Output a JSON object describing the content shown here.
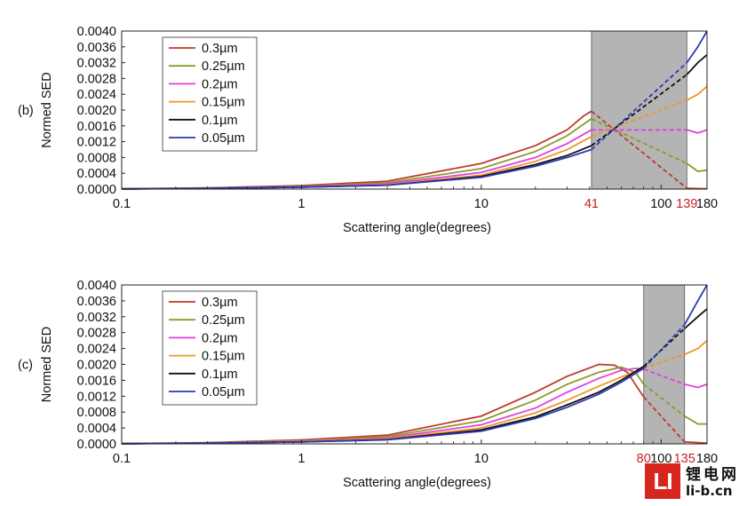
{
  "watermark": {
    "logo": "LI",
    "chinese": "锂电网",
    "url": "li-b.cn"
  },
  "chart_data": [
    {
      "type": "line",
      "panel_label": "(b)",
      "xlabel": "Scattering angle(degrees)",
      "ylabel": "Normed SED",
      "x_scale": "log",
      "xlim": [
        0.1,
        180
      ],
      "ylim": [
        0,
        0.004
      ],
      "x_ticks": [
        "0.1",
        "1",
        "10",
        "100",
        "180"
      ],
      "y_ticks": [
        "0.0000",
        "0.0004",
        "0.0008",
        "0.0012",
        "0.0016",
        "0.0020",
        "0.0024",
        "0.0028",
        "0.0032",
        "0.0036",
        "0.0040"
      ],
      "grid": false,
      "legend": "top-left",
      "shaded_region": [
        41,
        139
      ],
      "highlight_labels": [
        "41",
        "139"
      ],
      "highlight_color": "#c8202a",
      "series": [
        {
          "name": "0.3µm",
          "color": "#c0392b",
          "solid": [
            [
              0.1,
              5e-06
            ],
            [
              0.3,
              3e-05
            ],
            [
              1,
              9e-05
            ],
            [
              3,
              0.0002
            ],
            [
              10,
              0.00065
            ],
            [
              20,
              0.0011
            ],
            [
              30,
              0.0015
            ],
            [
              37,
              0.00185
            ],
            [
              41,
              0.00197
            ]
          ],
          "dashed": [
            [
              41,
              0.00197
            ],
            [
              139,
              2e-05
            ]
          ],
          "tail": [
            [
              139,
              2e-05
            ],
            [
              180,
              1e-05
            ]
          ]
        },
        {
          "name": "0.25µm",
          "color": "#8c9a2a",
          "solid": [
            [
              0.1,
              5e-06
            ],
            [
              0.3,
              2.5e-05
            ],
            [
              1,
              7e-05
            ],
            [
              3,
              0.00016
            ],
            [
              10,
              0.00052
            ],
            [
              20,
              0.00095
            ],
            [
              30,
              0.00135
            ],
            [
              41,
              0.00178
            ]
          ],
          "dashed": [
            [
              41,
              0.00178
            ],
            [
              139,
              0.00065
            ]
          ],
          "tail": [
            [
              139,
              0.00065
            ],
            [
              160,
              0.00045
            ],
            [
              180,
              0.00048
            ]
          ]
        },
        {
          "name": "0.2µm",
          "color": "#e040e0",
          "solid": [
            [
              0.1,
              5e-06
            ],
            [
              0.3,
              2e-05
            ],
            [
              1,
              6e-05
            ],
            [
              3,
              0.00013
            ],
            [
              10,
              0.00042
            ],
            [
              20,
              0.0008
            ],
            [
              30,
              0.00115
            ],
            [
              41,
              0.0015
            ]
          ],
          "dashed": [
            [
              41,
              0.0015
            ],
            [
              139,
              0.0015
            ]
          ],
          "tail": [
            [
              139,
              0.0015
            ],
            [
              160,
              0.00142
            ],
            [
              180,
              0.0015
            ]
          ]
        },
        {
          "name": "0.15µm",
          "color": "#f0962a",
          "solid": [
            [
              0.1,
              5e-06
            ],
            [
              0.3,
              2e-05
            ],
            [
              1,
              5e-05
            ],
            [
              3,
              0.00011
            ],
            [
              10,
              0.00035
            ],
            [
              20,
              0.0007
            ],
            [
              30,
              0.001
            ],
            [
              41,
              0.00133
            ]
          ],
          "dashed": [
            [
              41,
              0.00133
            ],
            [
              139,
              0.00225
            ]
          ],
          "tail": [
            [
              139,
              0.00225
            ],
            [
              160,
              0.0024
            ],
            [
              180,
              0.0026
            ]
          ]
        },
        {
          "name": "0.1µm",
          "color": "#111111",
          "solid": [
            [
              0.1,
              5e-06
            ],
            [
              0.3,
              2e-05
            ],
            [
              1,
              5e-05
            ],
            [
              3,
              0.0001
            ],
            [
              10,
              0.00032
            ],
            [
              20,
              0.00062
            ],
            [
              30,
              0.00085
            ],
            [
              41,
              0.0011
            ]
          ],
          "dashed": [
            [
              41,
              0.0011
            ],
            [
              139,
              0.0029
            ]
          ],
          "tail": [
            [
              139,
              0.0029
            ],
            [
              160,
              0.0032
            ],
            [
              180,
              0.0034
            ]
          ]
        },
        {
          "name": "0.05µm",
          "color": "#2f3ab0",
          "solid": [
            [
              0.1,
              5e-06
            ],
            [
              0.3,
              2e-05
            ],
            [
              1,
              5e-05
            ],
            [
              3,
              0.0001
            ],
            [
              10,
              0.0003
            ],
            [
              20,
              0.00058
            ],
            [
              30,
              0.0008
            ],
            [
              41,
              0.001
            ]
          ],
          "dashed": [
            [
              41,
              0.001
            ],
            [
              139,
              0.0032
            ]
          ],
          "tail": [
            [
              139,
              0.0032
            ],
            [
              160,
              0.0036
            ],
            [
              180,
              0.004
            ]
          ]
        }
      ]
    },
    {
      "type": "line",
      "panel_label": "(c)",
      "xlabel": "Scattering angle(degrees)",
      "ylabel": "Normed SED",
      "x_scale": "log",
      "xlim": [
        0.1,
        180
      ],
      "ylim": [
        0,
        0.004
      ],
      "x_ticks": [
        "0.1",
        "1",
        "10",
        "100",
        "180"
      ],
      "y_ticks": [
        "0.0000",
        "0.0004",
        "0.0008",
        "0.0012",
        "0.0016",
        "0.0020",
        "0.0024",
        "0.0028",
        "0.0032",
        "0.0036",
        "0.0040"
      ],
      "grid": false,
      "legend": "top-left",
      "shaded_region": [
        80,
        135
      ],
      "highlight_labels": [
        "80",
        "135"
      ],
      "highlight_color": "#c8202a",
      "series": [
        {
          "name": "0.3µm",
          "color": "#c0392b",
          "solid": [
            [
              0.1,
              5e-06
            ],
            [
              0.3,
              3e-05
            ],
            [
              1,
              0.0001
            ],
            [
              3,
              0.00022
            ],
            [
              10,
              0.0007
            ],
            [
              20,
              0.0013
            ],
            [
              30,
              0.0017
            ],
            [
              45,
              0.002
            ],
            [
              55,
              0.00198
            ],
            [
              65,
              0.0018
            ],
            [
              80,
              0.00118
            ]
          ],
          "dashed": [
            [
              80,
              0.00118
            ],
            [
              135,
              5e-05
            ]
          ],
          "tail": [
            [
              135,
              5e-05
            ],
            [
              180,
              2e-05
            ]
          ]
        },
        {
          "name": "0.25µm",
          "color": "#8c9a2a",
          "solid": [
            [
              0.1,
              5e-06
            ],
            [
              0.3,
              2.5e-05
            ],
            [
              1,
              8e-05
            ],
            [
              3,
              0.00018
            ],
            [
              10,
              0.00058
            ],
            [
              20,
              0.0011
            ],
            [
              30,
              0.0015
            ],
            [
              45,
              0.0018
            ],
            [
              60,
              0.00193
            ],
            [
              72,
              0.0018
            ],
            [
              80,
              0.0015
            ]
          ],
          "dashed": [
            [
              80,
              0.0015
            ],
            [
              135,
              0.0007
            ]
          ],
          "tail": [
            [
              135,
              0.0007
            ],
            [
              160,
              0.0005
            ],
            [
              180,
              0.0005
            ]
          ]
        },
        {
          "name": "0.2µm",
          "color": "#e040e0",
          "solid": [
            [
              0.1,
              5e-06
            ],
            [
              0.3,
              2e-05
            ],
            [
              1,
              7e-05
            ],
            [
              3,
              0.00015
            ],
            [
              10,
              0.00048
            ],
            [
              20,
              0.0009
            ],
            [
              30,
              0.0013
            ],
            [
              45,
              0.00165
            ],
            [
              60,
              0.00185
            ],
            [
              72,
              0.0019
            ],
            [
              80,
              0.00188
            ]
          ],
          "dashed": [
            [
              80,
              0.00188
            ],
            [
              135,
              0.0015
            ]
          ],
          "tail": [
            [
              135,
              0.0015
            ],
            [
              160,
              0.00142
            ],
            [
              180,
              0.0015
            ]
          ]
        },
        {
          "name": "0.15µm",
          "color": "#f0962a",
          "solid": [
            [
              0.1,
              5e-06
            ],
            [
              0.3,
              2e-05
            ],
            [
              1,
              6e-05
            ],
            [
              3,
              0.00013
            ],
            [
              10,
              0.0004
            ],
            [
              20,
              0.00078
            ],
            [
              30,
              0.0011
            ],
            [
              45,
              0.00145
            ],
            [
              60,
              0.00168
            ],
            [
              80,
              0.0019
            ]
          ],
          "dashed": [
            [
              80,
              0.0019
            ],
            [
              135,
              0.00225
            ]
          ],
          "tail": [
            [
              135,
              0.00225
            ],
            [
              160,
              0.0024
            ],
            [
              180,
              0.0026
            ]
          ]
        },
        {
          "name": "0.1µm",
          "color": "#111111",
          "solid": [
            [
              0.1,
              5e-06
            ],
            [
              0.3,
              2e-05
            ],
            [
              1,
              5e-05
            ],
            [
              3,
              0.00011
            ],
            [
              10,
              0.00035
            ],
            [
              20,
              0.00068
            ],
            [
              30,
              0.00098
            ],
            [
              45,
              0.0013
            ],
            [
              60,
              0.0016
            ],
            [
              80,
              0.00195
            ]
          ],
          "dashed": [
            [
              80,
              0.00195
            ],
            [
              135,
              0.0029
            ]
          ],
          "tail": [
            [
              135,
              0.0029
            ],
            [
              160,
              0.0032
            ],
            [
              180,
              0.0034
            ]
          ]
        },
        {
          "name": "0.05µm",
          "color": "#2f3ab0",
          "solid": [
            [
              0.1,
              5e-06
            ],
            [
              0.3,
              2e-05
            ],
            [
              1,
              5e-05
            ],
            [
              3,
              0.0001
            ],
            [
              10,
              0.00032
            ],
            [
              20,
              0.00064
            ],
            [
              30,
              0.00092
            ],
            [
              45,
              0.00125
            ],
            [
              60,
              0.00155
            ],
            [
              80,
              0.0019
            ]
          ],
          "dashed": [
            [
              80,
              0.0019
            ],
            [
              135,
              0.003
            ]
          ],
          "tail": [
            [
              135,
              0.003
            ],
            [
              160,
              0.0036
            ],
            [
              180,
              0.004
            ]
          ]
        }
      ]
    }
  ]
}
